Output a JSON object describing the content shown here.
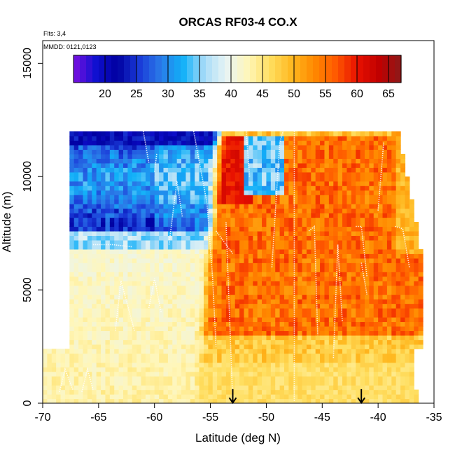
{
  "chart_data": {
    "type": "heatmap",
    "title": "ORCAS RF03-4 CO.X",
    "annotations": [
      "Flts: 3,4",
      "MMDD: 0121,0123"
    ],
    "xlabel": "Latitude (deg N)",
    "ylabel": "Altitude (m)",
    "xlim": [
      -70,
      -35
    ],
    "ylim": [
      0,
      16000
    ],
    "x_ticks": [
      -70,
      -65,
      -60,
      -55,
      -50,
      -45,
      -40,
      -35
    ],
    "y_ticks": [
      0,
      5000,
      10000,
      15000
    ],
    "colorbar": {
      "range": [
        15,
        67
      ],
      "ticks": [
        20,
        25,
        30,
        35,
        40,
        45,
        50,
        55,
        60,
        65
      ],
      "palette": [
        "#7a10e0",
        "#1010d0",
        "#0000a0",
        "#1a3ad8",
        "#2a7be8",
        "#10b0f8",
        "#a8dcf8",
        "#e8f4f4",
        "#fff6b8",
        "#ffde60",
        "#ffb820",
        "#ff8a00",
        "#ff5a00",
        "#e81000",
        "#c00000",
        "#8b1a1a"
      ]
    },
    "arrows_at_latitude": [
      -53,
      -41.5
    ],
    "regions": [
      {
        "name": "lower-troposphere-south",
        "x": [
          -70,
          -55
        ],
        "y": [
          0,
          7000
        ],
        "value": 42
      },
      {
        "name": "upper-troposphere-south",
        "x": [
          -67.5,
          -55
        ],
        "y": [
          7000,
          12000
        ],
        "value": 28
      },
      {
        "name": "mid-troposphere-north",
        "x": [
          -55,
          -36
        ],
        "y": [
          2000,
          9000
        ],
        "value": 54
      },
      {
        "name": "upper-troposphere-north",
        "x": [
          -51,
          -36
        ],
        "y": [
          9000,
          12000
        ],
        "value": 55
      },
      {
        "name": "boundary-layer-north",
        "x": [
          -55,
          -36
        ],
        "y": [
          0,
          2000
        ],
        "value": 47
      }
    ],
    "grid": false
  }
}
